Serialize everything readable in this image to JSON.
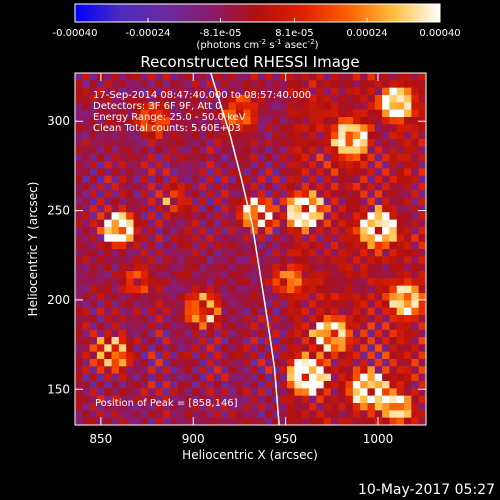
{
  "chart_data": {
    "type": "heatmap",
    "title": "Reconstructed RHESSI Image",
    "xlabel": "Heliocentric X (arcsec)",
    "ylabel": "Heliocentric Y (arcsec)",
    "xlim": [
      836,
      1026
    ],
    "ylim": [
      130,
      327
    ],
    "x_ticks": [
      850,
      900,
      950,
      1000
    ],
    "y_ticks": [
      150,
      200,
      250,
      300
    ],
    "colorbar": {
      "range": [
        -0.0004,
        0.0004
      ],
      "tick_labels": [
        "-0.00040",
        "-0.00024",
        "-8.1e-05",
        "8.1e-05",
        "0.00024",
        "0.00040"
      ],
      "tick_values": [
        -0.0004,
        -0.00024,
        -8.1e-05,
        8.1e-05,
        0.00024,
        0.0004
      ],
      "label_html": "(photons cm<tspan baseline-shift=\"super\" font-size=\"7\">-2</tspan> s<tspan baseline-shift=\"super\" font-size=\"7\">-1</tspan> asec<tspan baseline-shift=\"super\" font-size=\"7\">-2</tspan>)",
      "colors": [
        "#0000ff",
        "#4a2bbf",
        "#6a2aa0",
        "#8a1a6a",
        "#b01010",
        "#e02000",
        "#ff6000",
        "#ffc040",
        "#ffffff"
      ]
    },
    "annotations": [
      "17-Sep-2014 08:47:40.000 to 08:57:40.000",
      "Detectors: 3F 6F 9F, Att 0",
      "Energy Range: 25.0 - 50.0 keV",
      "Clean     Total counts: 5.60E+03"
    ],
    "peak_label": "Position of Peak = [858,146]",
    "limb_curve": {
      "x": [
        909.5,
        914,
        920,
        926,
        932,
        936,
        940,
        944,
        946.5
      ],
      "y": [
        327,
        312,
        292,
        268,
        242,
        216,
        190,
        162,
        130
      ]
    },
    "hotspots": [
      {
        "x": 860,
        "y": 240,
        "amp": 1.0,
        "r": 9
      },
      {
        "x": 856,
        "y": 170,
        "amp": 0.6,
        "r": 10
      },
      {
        "x": 878,
        "y": 300,
        "amp": 0.5,
        "r": 9
      },
      {
        "x": 925,
        "y": 305,
        "amp": 0.5,
        "r": 9
      },
      {
        "x": 935,
        "y": 248,
        "amp": 0.8,
        "r": 9
      },
      {
        "x": 905,
        "y": 195,
        "amp": 0.6,
        "r": 10
      },
      {
        "x": 960,
        "y": 250,
        "amp": 0.8,
        "r": 10
      },
      {
        "x": 985,
        "y": 290,
        "amp": 0.8,
        "r": 10
      },
      {
        "x": 1010,
        "y": 310,
        "amp": 0.9,
        "r": 9
      },
      {
        "x": 1000,
        "y": 240,
        "amp": 0.9,
        "r": 10
      },
      {
        "x": 1015,
        "y": 200,
        "amp": 0.8,
        "r": 9
      },
      {
        "x": 975,
        "y": 180,
        "amp": 0.7,
        "r": 10
      },
      {
        "x": 962,
        "y": 158,
        "amp": 1.0,
        "r": 10
      },
      {
        "x": 995,
        "y": 150,
        "amp": 0.9,
        "r": 10
      },
      {
        "x": 1010,
        "y": 140,
        "amp": 0.8,
        "r": 8
      },
      {
        "x": 950,
        "y": 210,
        "amp": 0.5,
        "r": 8
      },
      {
        "x": 890,
        "y": 255,
        "amp": 0.4,
        "r": 8
      },
      {
        "x": 870,
        "y": 210,
        "amp": 0.4,
        "r": 8
      }
    ]
  },
  "footer": {
    "timestamp": "10-May-2017 05:27"
  }
}
